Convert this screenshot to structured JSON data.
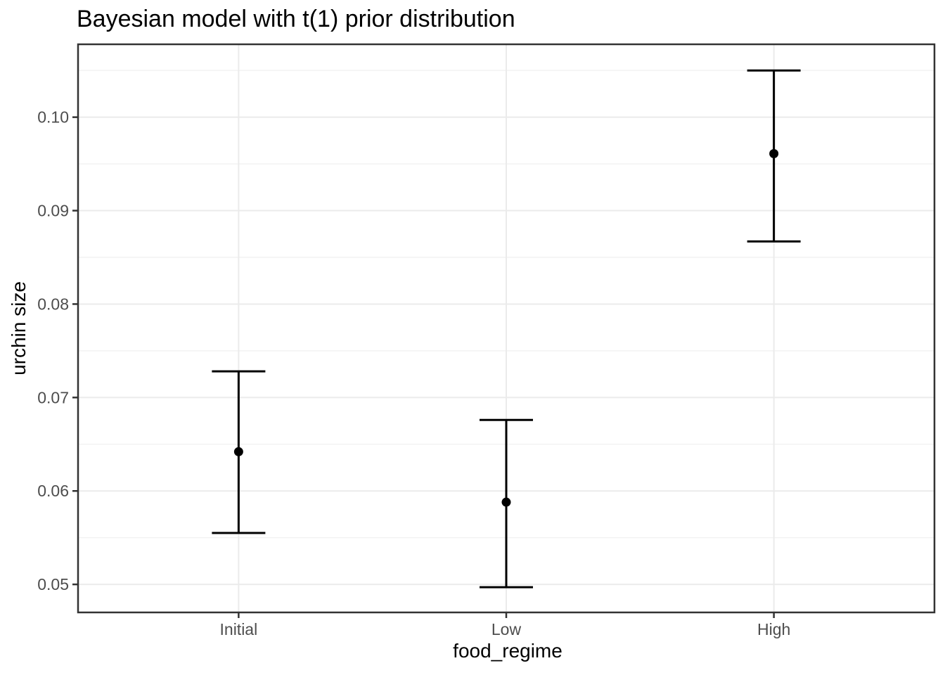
{
  "chart_data": {
    "type": "pointrange",
    "title": "Bayesian model with t(1) prior distribution",
    "xlabel": "food_regime",
    "ylabel": "urchin size",
    "categories": [
      "Initial",
      "Low",
      "High"
    ],
    "series": [
      {
        "category": "Initial",
        "mean": 0.0642,
        "lower": 0.0555,
        "upper": 0.0728
      },
      {
        "category": "Low",
        "mean": 0.0588,
        "lower": 0.0497,
        "upper": 0.0676
      },
      {
        "category": "High",
        "mean": 0.0961,
        "lower": 0.0867,
        "upper": 0.105
      }
    ],
    "y_ticks": [
      0.05,
      0.06,
      0.07,
      0.08,
      0.09,
      0.1
    ],
    "y_tick_labels": [
      "0.05",
      "0.06",
      "0.07",
      "0.08",
      "0.09",
      "0.10"
    ],
    "y_minor_ticks": [
      0.055,
      0.065,
      0.075,
      0.085,
      0.095,
      0.105
    ],
    "ylim": [
      0.047,
      0.1078
    ],
    "grid": "horizontal-major-minor, vertical-major-at-categories",
    "legend": "none",
    "colors": {
      "point": "#000000",
      "range_line": "#000000",
      "panel_border": "#333333",
      "major_grid": "#EBEBEB",
      "minor_grid": "#F2F2F2",
      "tick_mark": "#333333",
      "tick_label": "#4D4D4D",
      "axis_title": "#000000",
      "title": "#000000",
      "panel_background": "#FFFFFF",
      "figure_background": "#FFFFFF"
    }
  }
}
